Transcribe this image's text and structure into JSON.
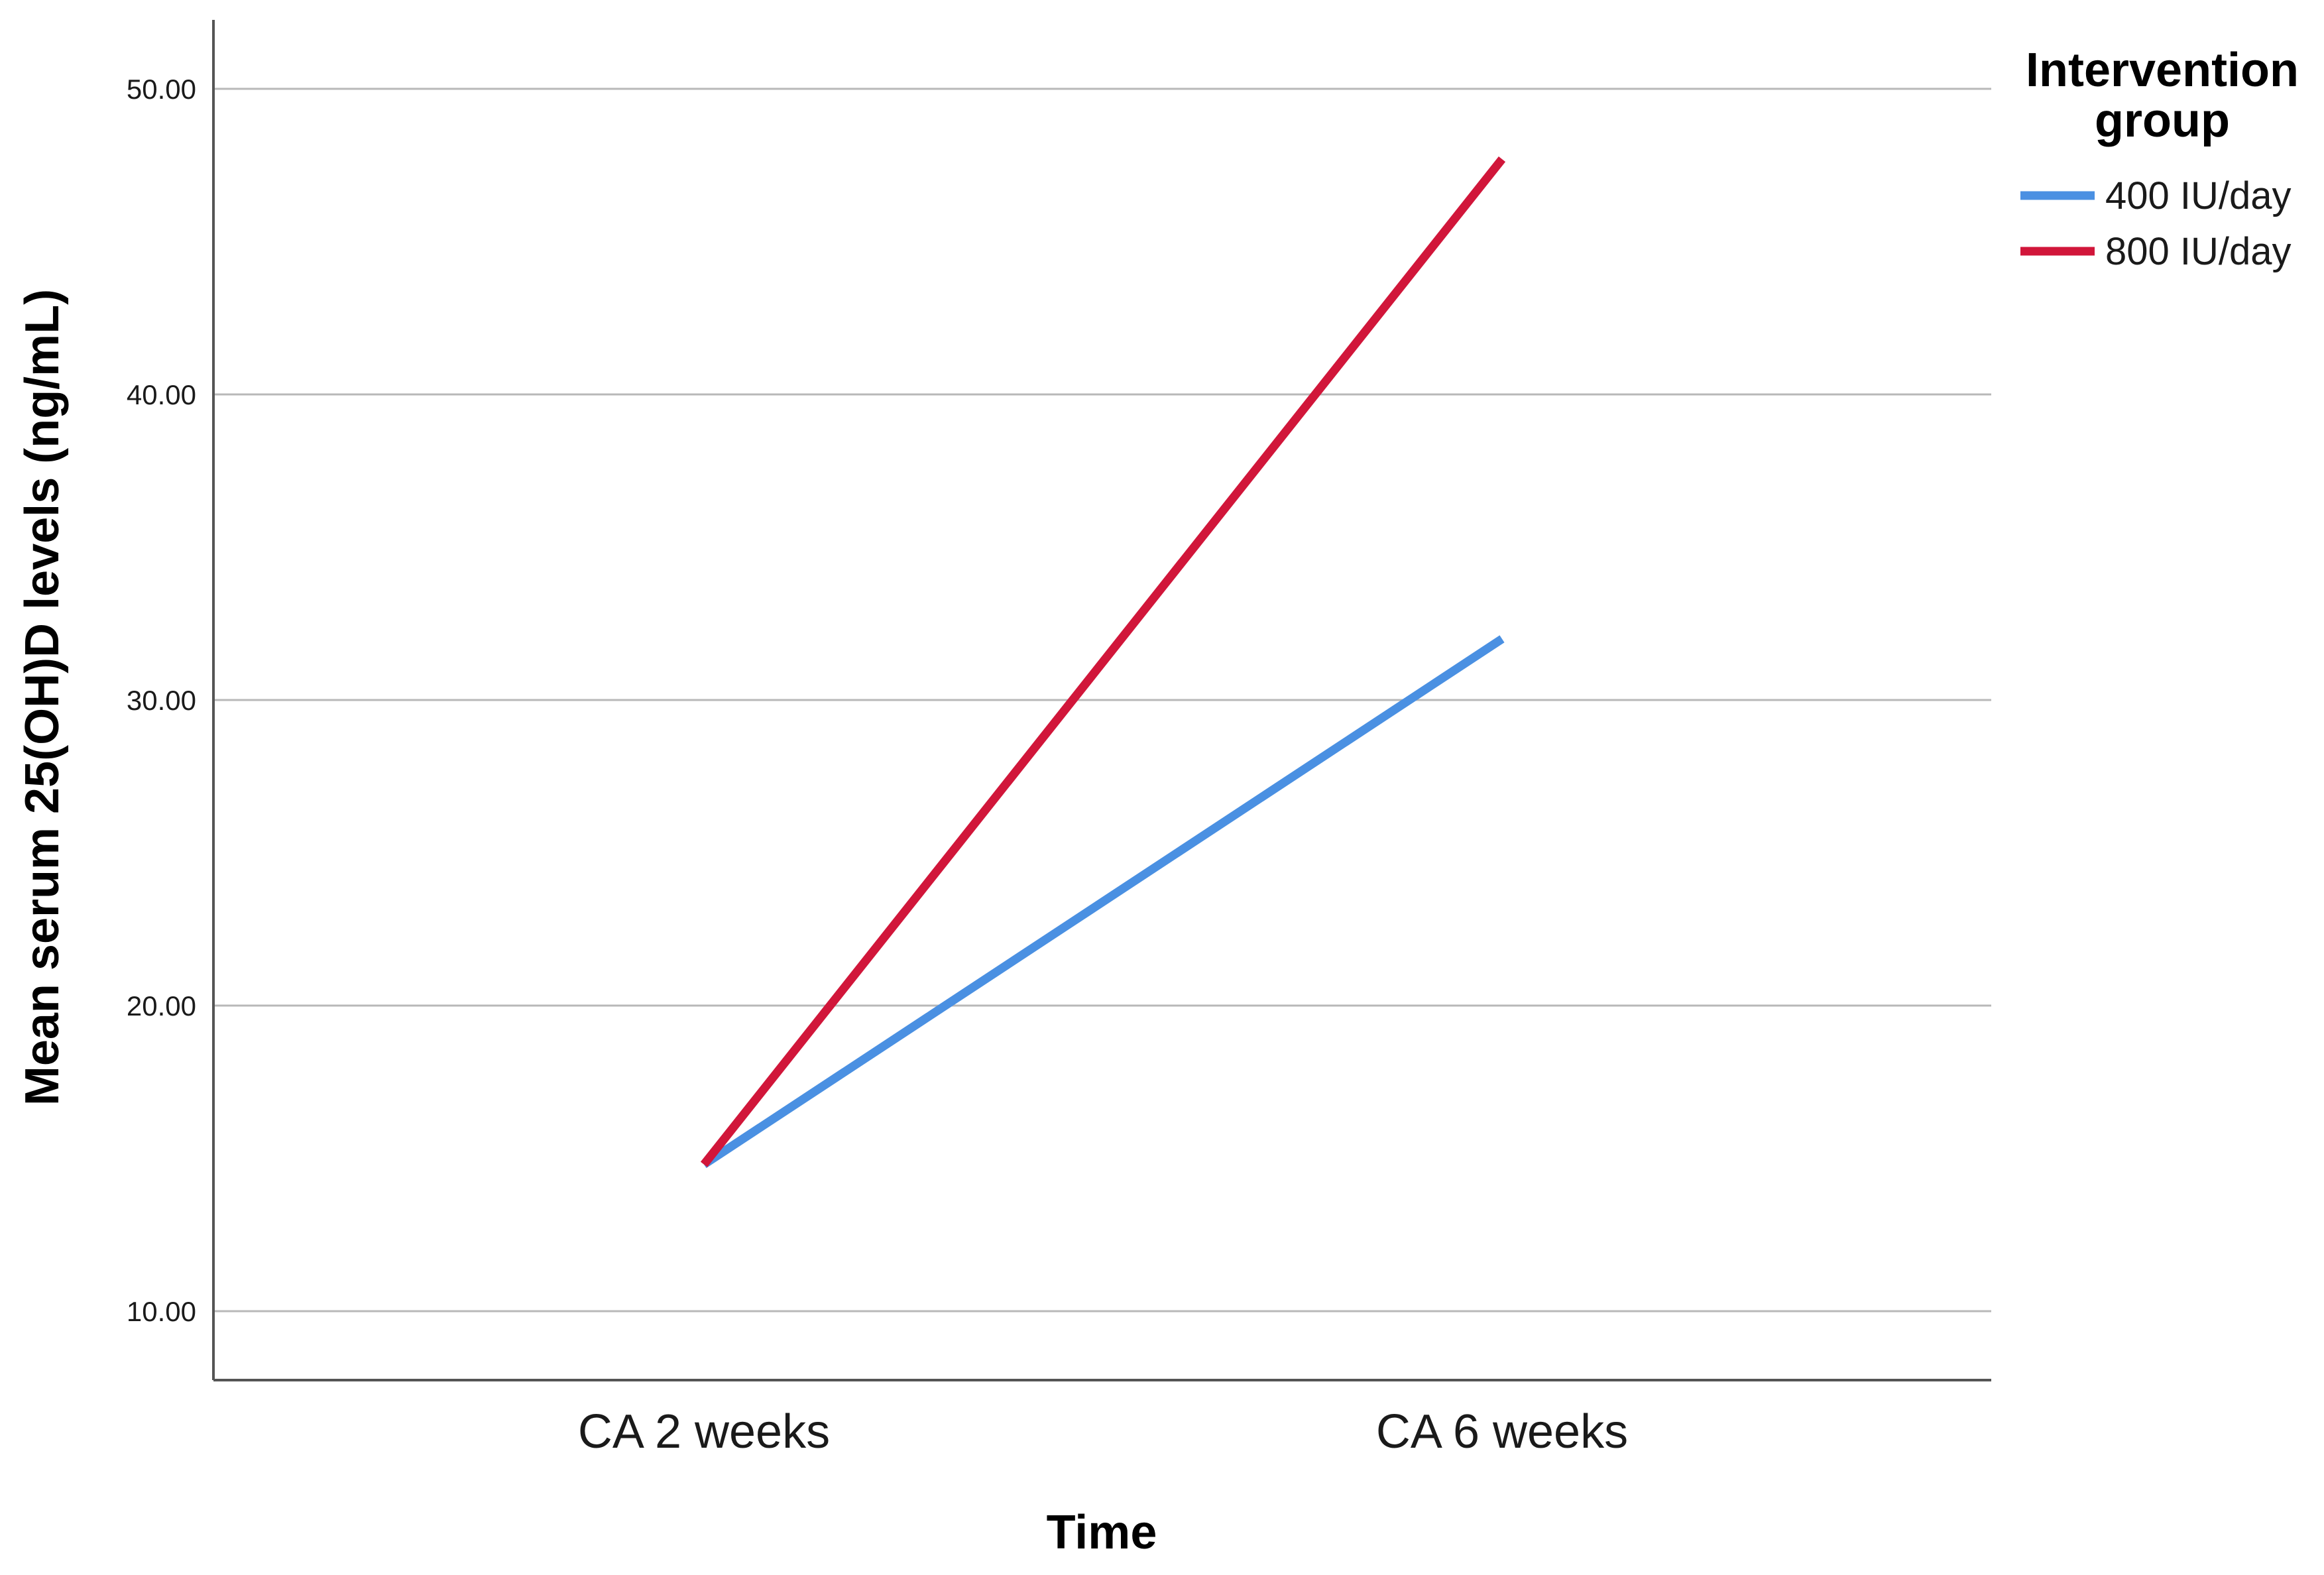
{
  "chart_data": {
    "type": "line",
    "x": [
      "CA 2 weeks",
      "CA 6 weeks"
    ],
    "xlabel": "Time",
    "ylabel": "Mean serum 25(OH)D levels (ng/mL)",
    "ylim": [
      7.8,
      52.2
    ],
    "yticks": [
      10,
      20,
      30,
      40,
      50
    ],
    "ytick_labels": [
      "10.00",
      "20.00",
      "30.00",
      "40.00",
      "50.00"
    ],
    "grid": "horizontal",
    "legend": {
      "title": [
        "Intervention",
        "group"
      ],
      "placement": "right"
    },
    "series": [
      {
        "name": "400 IU/day",
        "color": "#4a90e2",
        "values": [
          14.8,
          32.0
        ]
      },
      {
        "name": "800 IU/day",
        "color": "#d1163a",
        "values": [
          14.8,
          47.7
        ]
      }
    ]
  }
}
